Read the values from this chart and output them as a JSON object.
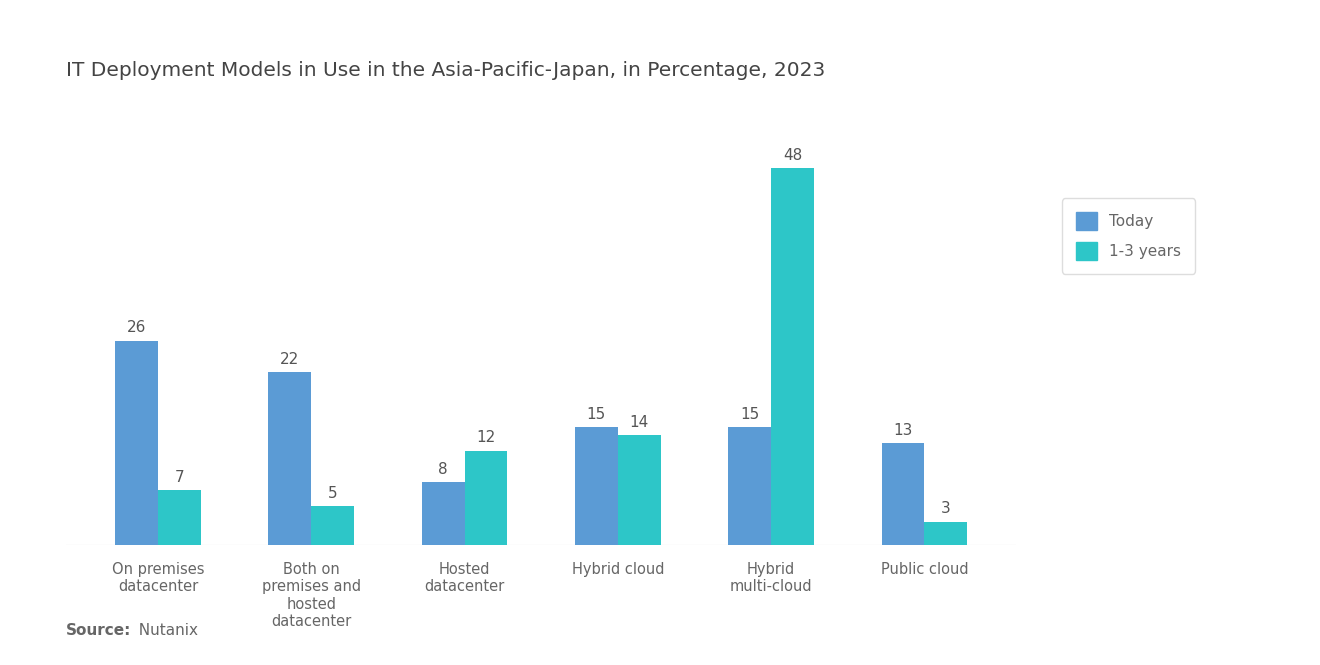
{
  "title": "IT Deployment Models in Use in the Asia-Pacific-Japan, in Percentage, 2023",
  "categories": [
    "On premises\ndatacenter",
    "Both on\npremises and\nhosted\ndatacenter",
    "Hosted\ndatacenter",
    "Hybrid cloud",
    "Hybrid\nmulti-cloud",
    "Public cloud"
  ],
  "today_values": [
    26,
    22,
    8,
    15,
    15,
    13
  ],
  "future_values": [
    7,
    5,
    12,
    14,
    48,
    3
  ],
  "color_today": "#5B9BD5",
  "color_future": "#2DC6C8",
  "legend_labels": [
    "Today",
    "1-3 years"
  ],
  "source_bold": "Source:",
  "source_rest": "  Nutanix",
  "background_color": "#FFFFFF",
  "bar_width": 0.28,
  "ylim": [
    0,
    55
  ],
  "title_fontsize": 14.5,
  "label_fontsize": 11,
  "tick_fontsize": 10.5,
  "value_fontsize": 11,
  "source_fontsize": 11
}
